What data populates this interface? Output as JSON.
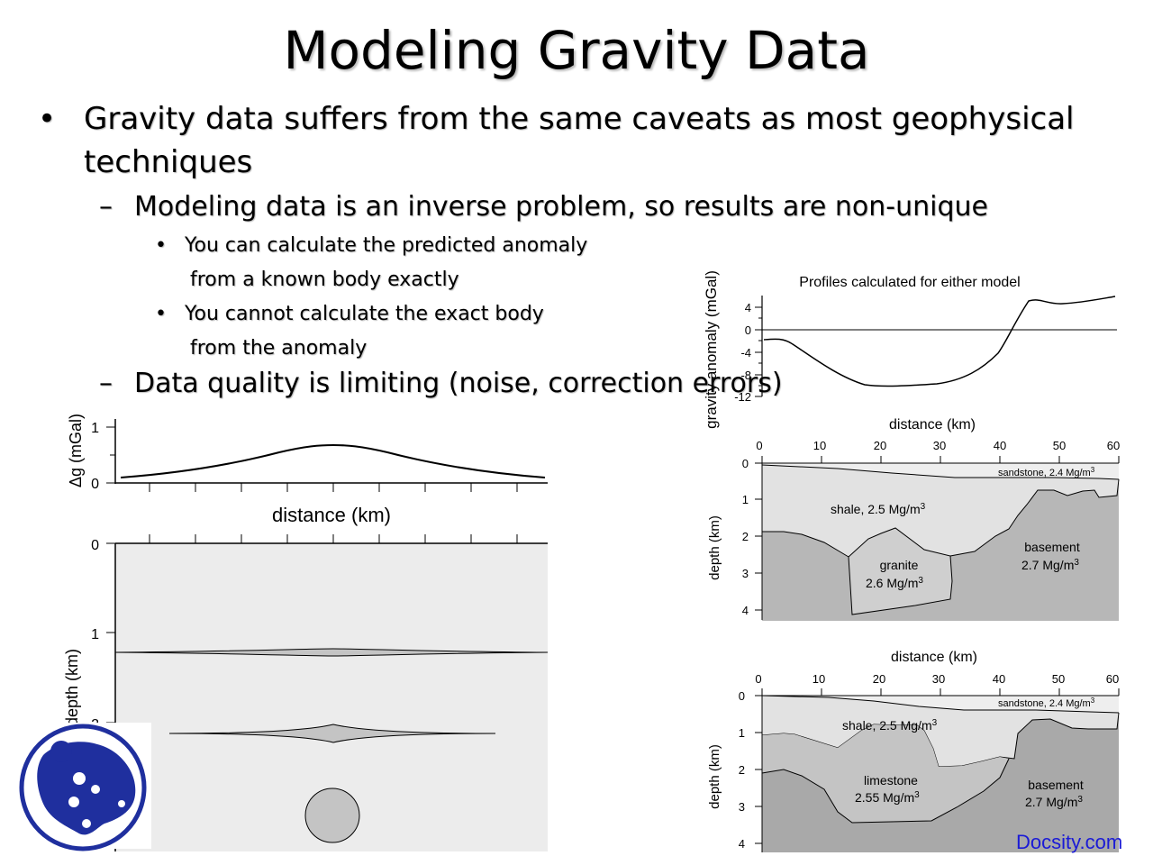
{
  "slide": {
    "title": "Modeling Gravity Data",
    "bullets": [
      {
        "marker": "•",
        "text": "Gravity data suffers from the same caveats as most geophysical",
        "text_cont": "techniques"
      },
      {
        "marker": "–",
        "text": "Modeling data is an inverse problem, so results are non-unique"
      },
      {
        "marker": "•",
        "text": "You can calculate the predicted anomaly",
        "text_cont": "from a known body exactly"
      },
      {
        "marker": "•",
        "text": "You cannot calculate the exact body",
        "text_cont": "from the anomaly"
      },
      {
        "marker": "–",
        "text": "Data quality is limiting (noise, correction errors)"
      }
    ],
    "watermark": "Docsity.com",
    "logo_icon": "docsity-logo-icon"
  },
  "left_figure": {
    "ylabel_top": "Δg (mGal)",
    "ytick_top": [
      "1",
      "0"
    ],
    "xlabel": "distance (km)",
    "ylabel_bottom": "depth (km)",
    "ytick_bottom": [
      "0",
      "1",
      "2"
    ],
    "fill_color": "#ececec",
    "body_color": "#c4c4c4"
  },
  "right_top": {
    "title": "Profiles calculated for either model",
    "ylabel": "gravity anomaly (mGal)",
    "yticks": [
      "4",
      "0",
      "-4",
      "-8",
      "-12"
    ]
  },
  "right_mid": {
    "xlabel": "distance (km)",
    "xticks": [
      "0",
      "10",
      "20",
      "30",
      "40",
      "50",
      "60"
    ],
    "ylabel": "depth (km)",
    "yticks": [
      "0",
      "1",
      "2",
      "3",
      "4"
    ],
    "labels": {
      "sandstone": "sandstone, 2.4 Mg/m",
      "shale": "shale, 2.5 Mg/m",
      "granite": "granite",
      "granite_density": "2.6 Mg/m",
      "basement": "basement",
      "basement_density": "2.7 Mg/m",
      "sup": "3"
    }
  },
  "right_bot": {
    "xlabel": "distance (km)",
    "xticks": [
      "0",
      "10",
      "20",
      "30",
      "40",
      "50",
      "60"
    ],
    "ylabel": "depth (km)",
    "yticks": [
      "0",
      "1",
      "2",
      "3",
      "4"
    ],
    "labels": {
      "sandstone": "sandstone, 2.4 Mg/m",
      "shale": "shale, 2.5 Mg/m",
      "limestone": "limestone",
      "limestone_density": "2.55 Mg/m",
      "basement": "basement",
      "basement_density": "2.7 Mg/m",
      "sup": "3"
    }
  }
}
